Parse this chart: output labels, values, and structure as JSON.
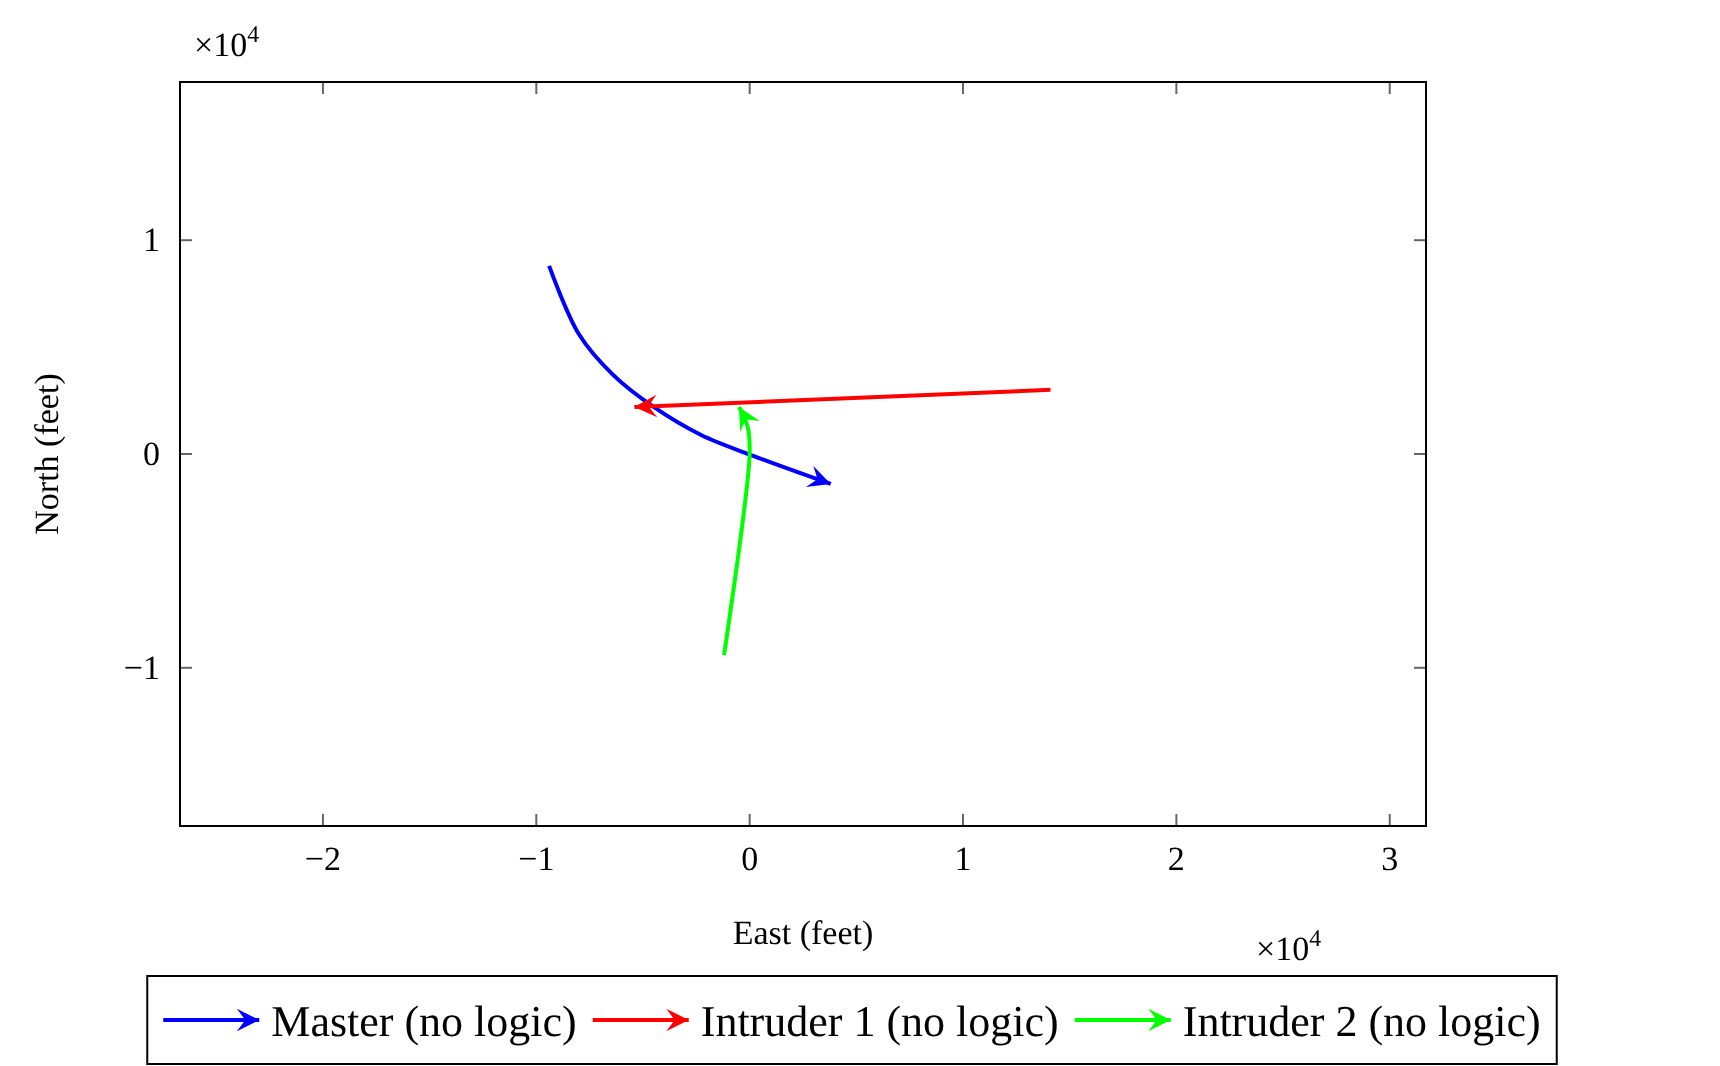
{
  "chart_data": {
    "type": "line",
    "xlabel": "East (feet)",
    "ylabel": "North (feet)",
    "xlim": [
      -2.67,
      3.17
    ],
    "ylim": [
      -1.74,
      1.74
    ],
    "xticks": [
      {
        "value": -2,
        "label": "−2"
      },
      {
        "value": -1,
        "label": "−1"
      },
      0,
      1,
      2,
      3
    ],
    "yticks": [
      {
        "value": -1,
        "label": "−1"
      },
      0,
      1
    ],
    "annotations": [
      "×10$^{4}$",
      "×10$^{4}$"
    ],
    "legend": "bottom",
    "grid": false,
    "marker": "none",
    "line_style": "solid",
    "series": [
      {
        "name": "Master (no logic)",
        "color": "#0000ff",
        "x": [
          -0.94,
          -0.8,
          -0.64,
          -0.45,
          -0.23,
          0.02,
          0.38
        ],
        "values": [
          0.88,
          0.56,
          0.37,
          0.22,
          0.09,
          -0.01,
          -0.14
        ]
      },
      {
        "name": "Intruder 1 (no logic)",
        "color": "#ff0000",
        "x": [
          1.41,
          -0.54
        ],
        "values": [
          0.3,
          0.22
        ]
      },
      {
        "name": "Intruder 2 (no logic)",
        "color": "#00ff00",
        "x": [
          -0.12,
          0,
          -0.01,
          -0.05
        ],
        "values": [
          -0.94,
          0,
          0.13,
          0.22
        ]
      }
    ]
  }
}
